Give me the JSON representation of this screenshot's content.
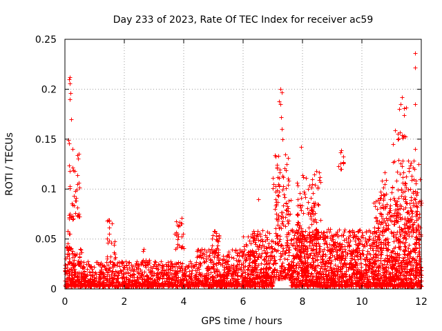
{
  "chart_data": {
    "type": "scatter",
    "title": "Day 233 of 2023, Rate Of TEC Index for receiver ac59",
    "xlabel": "GPS time / hours",
    "ylabel": "ROTI / TECUs",
    "xlim": [
      0,
      12
    ],
    "ylim": [
      0,
      0.25
    ],
    "x_ticks": [
      "0",
      "2",
      "4",
      "6",
      "8",
      "10",
      "12"
    ],
    "y_ticks": [
      "0",
      "0.05",
      "0.1",
      "0.15",
      "0.2",
      "0.25"
    ],
    "grid": true,
    "marker": "+",
    "series": [
      {
        "name": "ROTI",
        "color": "#ff0000",
        "clusters": [
          {
            "x": [
              0.0,
              0.6
            ],
            "y": [
              0.003,
              0.04
            ],
            "n": 220
          },
          {
            "x": [
              0.05,
              0.2
            ],
            "y": [
              0.04,
              0.06
            ],
            "n": 12
          },
          {
            "x": [
              0.1,
              0.5
            ],
            "y": [
              0.07,
              0.14
            ],
            "n": 40
          },
          {
            "x": [
              0.6,
              4.4
            ],
            "y": [
              0.003,
              0.028
            ],
            "n": 900
          },
          {
            "x": [
              1.4,
              1.7
            ],
            "y": [
              0.03,
              0.07
            ],
            "n": 20
          },
          {
            "x": [
              2.5,
              2.9
            ],
            "y": [
              0.025,
              0.04
            ],
            "n": 14
          },
          {
            "x": [
              3.7,
              4.0
            ],
            "y": [
              0.04,
              0.072
            ],
            "n": 24
          },
          {
            "x": [
              4.4,
              6.4
            ],
            "y": [
              0.003,
              0.04
            ],
            "n": 600
          },
          {
            "x": [
              4.9,
              5.2
            ],
            "y": [
              0.04,
              0.06
            ],
            "n": 18
          },
          {
            "x": [
              6.0,
              6.4
            ],
            "y": [
              0.03,
              0.06
            ],
            "n": 24
          },
          {
            "x": [
              6.3,
              7.0
            ],
            "y": [
              0.003,
              0.06
            ],
            "n": 260
          },
          {
            "x": [
              7.0,
              7.6
            ],
            "y": [
              0.01,
              0.135
            ],
            "n": 220
          },
          {
            "x": [
              7.6,
              10.4
            ],
            "y": [
              0.003,
              0.06
            ],
            "n": 1200
          },
          {
            "x": [
              7.8,
              8.6
            ],
            "y": [
              0.05,
              0.12
            ],
            "n": 120
          },
          {
            "x": [
              9.2,
              9.4
            ],
            "y": [
              0.12,
              0.14
            ],
            "n": 10
          },
          {
            "x": [
              10.4,
              12.0
            ],
            "y": [
              0.003,
              0.09
            ],
            "n": 900
          },
          {
            "x": [
              10.6,
              11.9
            ],
            "y": [
              0.09,
              0.13
            ],
            "n": 70
          },
          {
            "x": [
              11.1,
              11.5
            ],
            "y": [
              0.15,
              0.19
            ],
            "n": 12
          }
        ],
        "highlights": [
          {
            "x": 0.15,
            "y": 0.21
          },
          {
            "x": 0.17,
            "y": 0.212
          },
          {
            "x": 0.16,
            "y": 0.206
          },
          {
            "x": 0.18,
            "y": 0.196
          },
          {
            "x": 0.16,
            "y": 0.19
          },
          {
            "x": 0.2,
            "y": 0.17
          },
          {
            "x": 0.12,
            "y": 0.149
          },
          {
            "x": 0.14,
            "y": 0.146
          },
          {
            "x": 0.25,
            "y": 0.14
          },
          {
            "x": 7.25,
            "y": 0.2
          },
          {
            "x": 7.3,
            "y": 0.197
          },
          {
            "x": 7.22,
            "y": 0.188
          },
          {
            "x": 7.26,
            "y": 0.185
          },
          {
            "x": 7.28,
            "y": 0.172
          },
          {
            "x": 7.3,
            "y": 0.16
          },
          {
            "x": 7.32,
            "y": 0.15
          },
          {
            "x": 7.95,
            "y": 0.142
          },
          {
            "x": 8.5,
            "y": 0.102
          },
          {
            "x": 8.52,
            "y": 0.101
          },
          {
            "x": 6.5,
            "y": 0.09
          },
          {
            "x": 11.8,
            "y": 0.236
          },
          {
            "x": 11.8,
            "y": 0.222
          },
          {
            "x": 11.78,
            "y": 0.185
          },
          {
            "x": 11.35,
            "y": 0.192
          },
          {
            "x": 11.3,
            "y": 0.185
          },
          {
            "x": 11.25,
            "y": 0.18
          },
          {
            "x": 11.2,
            "y": 0.15
          },
          {
            "x": 11.05,
            "y": 0.145
          },
          {
            "x": 11.8,
            "y": 0.14
          },
          {
            "x": 11.9,
            "y": 0.125
          },
          {
            "x": 11.95,
            "y": 0.11
          }
        ]
      }
    ]
  }
}
